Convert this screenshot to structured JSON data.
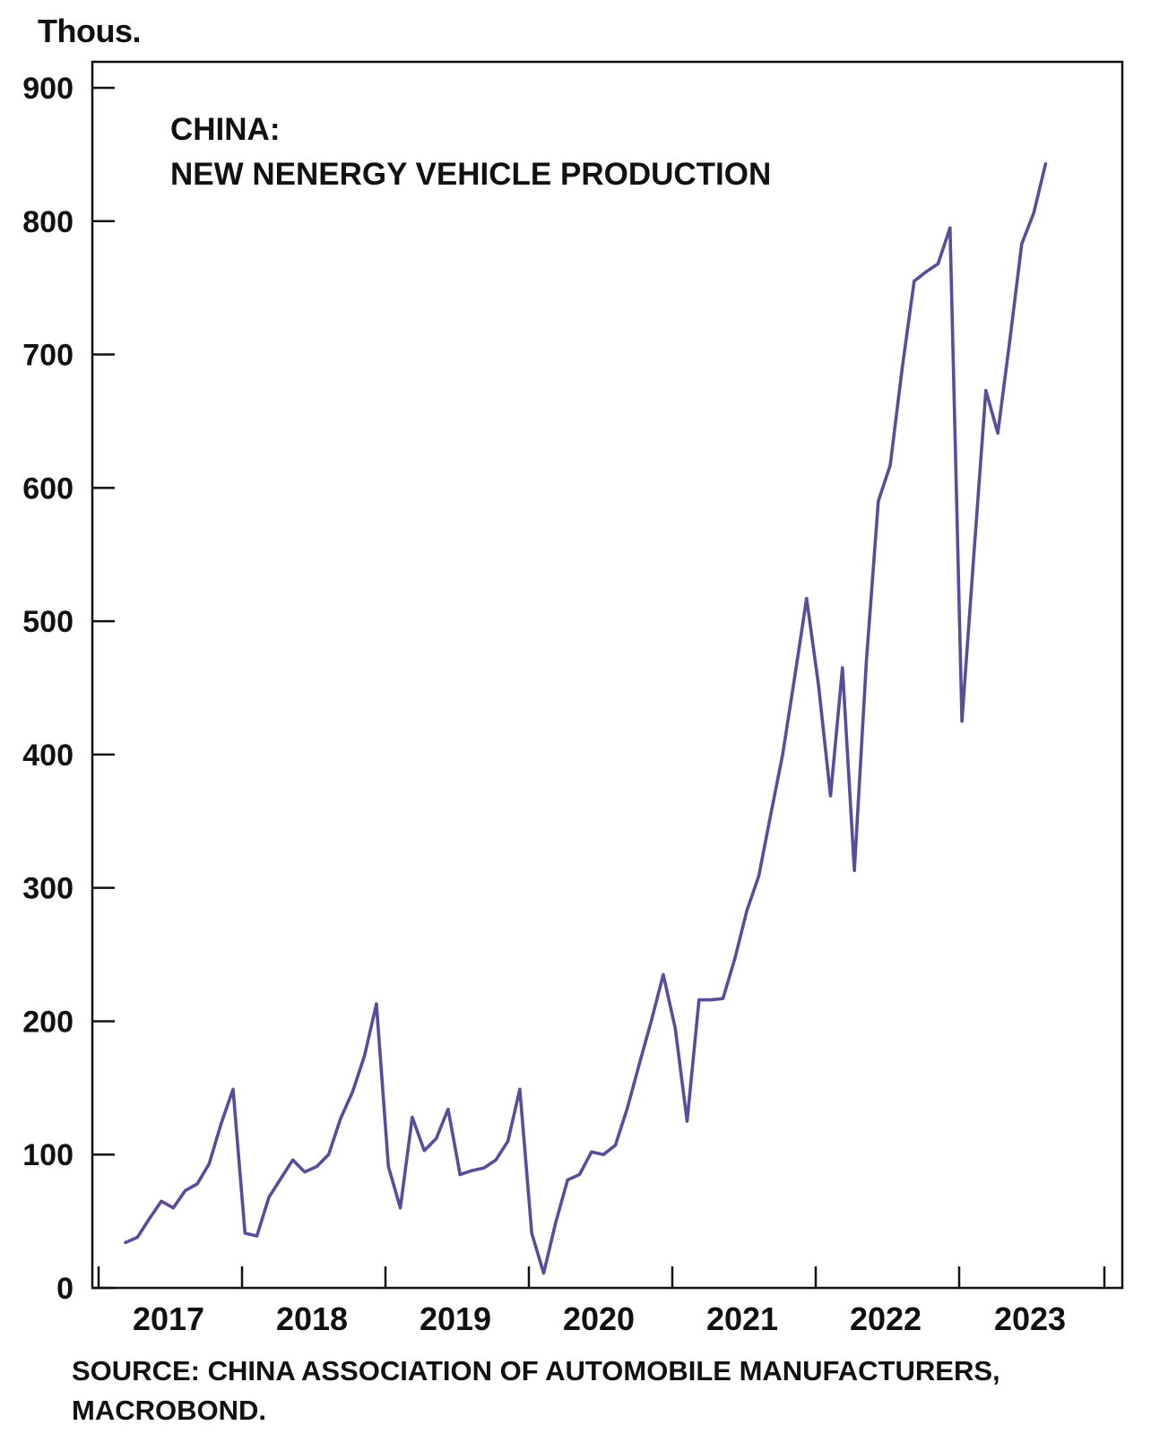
{
  "chart_data": {
    "type": "line",
    "unit_label": "Thous.",
    "title_lines": [
      "CHINA:",
      "NEW NENERGY VEHICLE PRODUCTION"
    ],
    "source_lines": [
      "SOURCE: CHINA ASSOCIATION OF AUTOMOBILE MANUFACTURERS,",
      "MACROBOND."
    ],
    "ylim": [
      0,
      900
    ],
    "yticks": [
      "0",
      "100",
      "200",
      "300",
      "400",
      "500",
      "600",
      "700",
      "800",
      "900"
    ],
    "x_year_labels": [
      "2017",
      "2018",
      "2019",
      "2020",
      "2021",
      "2022",
      "2023"
    ],
    "grid": false,
    "line_color": "#5b4b9a",
    "series": [
      {
        "values": [
          34,
          38,
          52,
          65,
          60,
          73,
          78,
          93,
          123,
          149,
          41,
          39,
          68,
          82,
          96,
          87,
          91,
          100,
          127,
          147,
          174,
          213,
          91,
          60,
          128,
          103,
          112,
          134,
          85,
          88,
          90,
          96,
          110,
          149,
          41,
          11,
          49,
          81,
          85,
          102,
          100,
          107,
          135,
          168,
          200,
          235,
          195,
          125,
          216,
          216,
          217,
          247,
          283,
          309,
          355,
          400,
          458,
          517,
          452,
          369,
          465,
          313,
          470,
          590,
          617,
          690,
          755,
          762,
          768,
          795,
          425,
          550,
          673,
          641,
          710,
          783,
          806,
          843
        ]
      }
    ]
  }
}
